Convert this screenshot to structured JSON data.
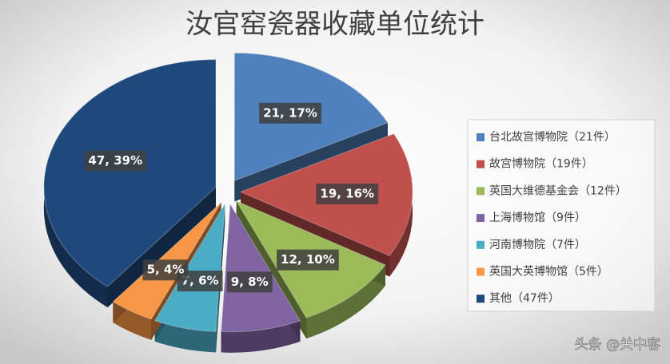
{
  "chart_data": {
    "type": "pie",
    "title": "汝官窑瓷器收藏单位统计",
    "categories": [
      "台北故宫博物院（21件）",
      "故宫博物院（19件）",
      "英国大维德基金会（12件）",
      "上海博物馆（9件）",
      "河南博物院（7件）",
      "英国大英博物馆（5件）",
      "其他（47件）"
    ],
    "values": [
      21,
      19,
      12,
      9,
      7,
      5,
      47
    ],
    "value_labels": [
      "21, 17%",
      "19, 16%",
      "12, 10%",
      "9, 8%",
      "7, 6%",
      "5, 4%",
      "47, 39%"
    ],
    "colors": [
      "#4f81bd",
      "#c0504d",
      "#9bbb59",
      "#8064a2",
      "#4bacc6",
      "#f79646",
      "#1f497d"
    ],
    "legend": "right"
  },
  "watermark": "头条 @关中客"
}
